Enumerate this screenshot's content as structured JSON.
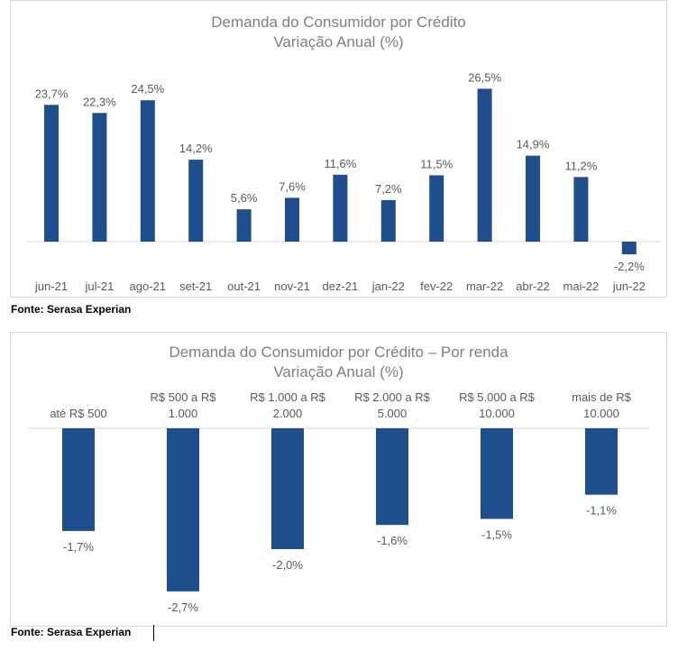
{
  "chart_data": [
    {
      "type": "bar",
      "title": "Demanda do Consumidor por Crédito",
      "subtitle": "Variação Anual (%)",
      "categories": [
        "jun-21",
        "jul-21",
        "ago-21",
        "set-21",
        "out-21",
        "nov-21",
        "dez-21",
        "jan-22",
        "fev-22",
        "mar-22",
        "abr-22",
        "mai-22",
        "jun-22"
      ],
      "values": [
        23.7,
        22.3,
        24.5,
        14.2,
        5.6,
        7.6,
        11.6,
        7.2,
        11.5,
        26.5,
        14.9,
        11.2,
        -2.2
      ],
      "labels": [
        "23,7%",
        "22,3%",
        "24,5%",
        "14,2%",
        "5,6%",
        "7,6%",
        "11,6%",
        "7,2%",
        "11,5%",
        "26,5%",
        "14,9%",
        "11,2%",
        "-2,2%"
      ],
      "color": "#1f4e8c",
      "grid": false,
      "legend": false
    },
    {
      "type": "bar",
      "title": "Demanda do Consumidor por Crédito – Por renda",
      "subtitle": "Variação Anual (%)",
      "categories": [
        [
          "até R$ 500"
        ],
        [
          "R$ 500 a R$",
          "1.000"
        ],
        [
          "R$ 1.000 a R$",
          "2.000"
        ],
        [
          "R$ 2.000 a R$",
          "5.000"
        ],
        [
          "R$ 5.000 a R$",
          "10.000"
        ],
        [
          "mais de R$",
          "10.000"
        ]
      ],
      "values": [
        -1.7,
        -2.7,
        -2.0,
        -1.6,
        -1.5,
        -1.1
      ],
      "labels": [
        "-1,7%",
        "-2,7%",
        "-2,0%",
        "-1,6%",
        "-1,5%",
        "-1,1%"
      ],
      "color": "#1f4e8c",
      "grid": false,
      "legend": false
    }
  ],
  "sources": [
    "Fonte: Serasa Experian",
    "Fonte: Serasa Experian"
  ]
}
